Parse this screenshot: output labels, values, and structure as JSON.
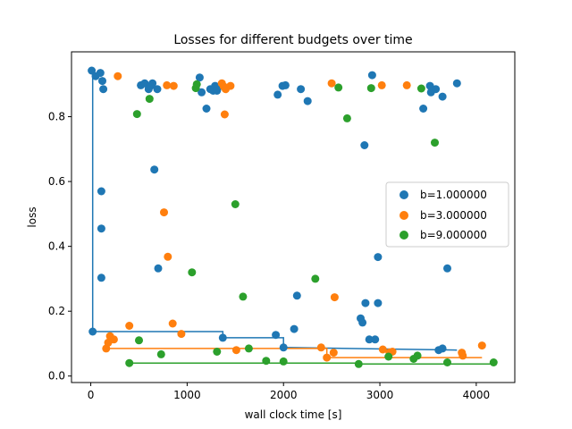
{
  "chart_data": {
    "type": "scatter",
    "title": "Losses for different budgets over time",
    "xlabel": "wall clock time [s]",
    "ylabel": "loss",
    "xlim": [
      -200,
      4400
    ],
    "ylim": [
      -0.02,
      1.0
    ],
    "xticks": [
      0,
      1000,
      2000,
      3000,
      4000
    ],
    "yticks": [
      0.0,
      0.2,
      0.4,
      0.6,
      0.8
    ],
    "xtick_labels": [
      "0",
      "1000",
      "2000",
      "3000",
      "4000"
    ],
    "ytick_labels": [
      "0.0",
      "0.2",
      "0.4",
      "0.6",
      "0.8"
    ],
    "grid": false,
    "legend_position": "center-right",
    "series": [
      {
        "name": "b=1.000000",
        "color": "#1f77b4",
        "points": [
          [
            10,
            0.942
          ],
          [
            50,
            0.925
          ],
          [
            100,
            0.935
          ],
          [
            120,
            0.91
          ],
          [
            130,
            0.885
          ],
          [
            20,
            0.137
          ],
          [
            110,
            0.57
          ],
          [
            110,
            0.455
          ],
          [
            110,
            0.303
          ],
          [
            520,
            0.897
          ],
          [
            560,
            0.903
          ],
          [
            600,
            0.885
          ],
          [
            620,
            0.895
          ],
          [
            640,
            0.903
          ],
          [
            660,
            0.637
          ],
          [
            690,
            0.885
          ],
          [
            700,
            0.332
          ],
          [
            1130,
            0.921
          ],
          [
            1150,
            0.875
          ],
          [
            1200,
            0.825
          ],
          [
            1240,
            0.885
          ],
          [
            1270,
            0.88
          ],
          [
            1290,
            0.895
          ],
          [
            1310,
            0.88
          ],
          [
            1350,
            0.895
          ],
          [
            1370,
            0.118
          ],
          [
            1940,
            0.868
          ],
          [
            1990,
            0.895
          ],
          [
            2020,
            0.897
          ],
          [
            2180,
            0.885
          ],
          [
            2250,
            0.848
          ],
          [
            1920,
            0.127
          ],
          [
            2000,
            0.088
          ],
          [
            2110,
            0.145
          ],
          [
            2140,
            0.248
          ],
          [
            2800,
            0.178
          ],
          [
            2820,
            0.165
          ],
          [
            2850,
            0.225
          ],
          [
            2840,
            0.712
          ],
          [
            2890,
            0.113
          ],
          [
            2920,
            0.928
          ],
          [
            2950,
            0.113
          ],
          [
            2980,
            0.225
          ],
          [
            2980,
            0.367
          ],
          [
            3450,
            0.825
          ],
          [
            3520,
            0.895
          ],
          [
            3530,
            0.875
          ],
          [
            3580,
            0.885
          ],
          [
            3650,
            0.862
          ],
          [
            3610,
            0.08
          ],
          [
            3650,
            0.085
          ],
          [
            3700,
            0.332
          ],
          [
            3800,
            0.903
          ]
        ],
        "step": [
          [
            20,
            0.942
          ],
          [
            20,
            0.137
          ],
          [
            1370,
            0.137
          ],
          [
            1370,
            0.118
          ],
          [
            2000,
            0.118
          ],
          [
            2000,
            0.088
          ],
          [
            3800,
            0.08
          ]
        ]
      },
      {
        "name": "b=3.000000",
        "color": "#ff7f0e",
        "points": [
          [
            160,
            0.085
          ],
          [
            180,
            0.103
          ],
          [
            200,
            0.123
          ],
          [
            240,
            0.113
          ],
          [
            280,
            0.925
          ],
          [
            400,
            0.155
          ],
          [
            760,
            0.505
          ],
          [
            800,
            0.368
          ],
          [
            790,
            0.897
          ],
          [
            850,
            0.162
          ],
          [
            860,
            0.895
          ],
          [
            940,
            0.13
          ],
          [
            1360,
            0.903
          ],
          [
            1380,
            0.893
          ],
          [
            1390,
            0.807
          ],
          [
            1400,
            0.885
          ],
          [
            1450,
            0.895
          ],
          [
            1510,
            0.08
          ],
          [
            2390,
            0.088
          ],
          [
            2450,
            0.057
          ],
          [
            2500,
            0.903
          ],
          [
            2520,
            0.072
          ],
          [
            2530,
            0.243
          ],
          [
            3020,
            0.897
          ],
          [
            3030,
            0.082
          ],
          [
            3100,
            0.073
          ],
          [
            3130,
            0.075
          ],
          [
            3280,
            0.897
          ],
          [
            3850,
            0.072
          ],
          [
            3860,
            0.063
          ],
          [
            4060,
            0.094
          ]
        ],
        "step": [
          [
            160,
            0.085
          ],
          [
            2450,
            0.085
          ],
          [
            2450,
            0.057
          ],
          [
            4060,
            0.057
          ]
        ]
      },
      {
        "name": "b=9.000000",
        "color": "#2ca02c",
        "points": [
          [
            400,
            0.04
          ],
          [
            480,
            0.808
          ],
          [
            500,
            0.11
          ],
          [
            610,
            0.855
          ],
          [
            730,
            0.067
          ],
          [
            1050,
            0.32
          ],
          [
            1090,
            0.888
          ],
          [
            1100,
            0.9
          ],
          [
            1310,
            0.075
          ],
          [
            1500,
            0.53
          ],
          [
            1580,
            0.245
          ],
          [
            1640,
            0.085
          ],
          [
            1820,
            0.047
          ],
          [
            2000,
            0.045
          ],
          [
            2330,
            0.3
          ],
          [
            2570,
            0.89
          ],
          [
            2660,
            0.795
          ],
          [
            2780,
            0.037
          ],
          [
            2910,
            0.888
          ],
          [
            3090,
            0.06
          ],
          [
            3350,
            0.053
          ],
          [
            3390,
            0.063
          ],
          [
            3430,
            0.887
          ],
          [
            3570,
            0.72
          ],
          [
            3700,
            0.042
          ],
          [
            4180,
            0.042
          ]
        ],
        "step": [
          [
            400,
            0.04
          ],
          [
            2780,
            0.04
          ],
          [
            2780,
            0.037
          ],
          [
            4180,
            0.037
          ]
        ]
      }
    ]
  }
}
